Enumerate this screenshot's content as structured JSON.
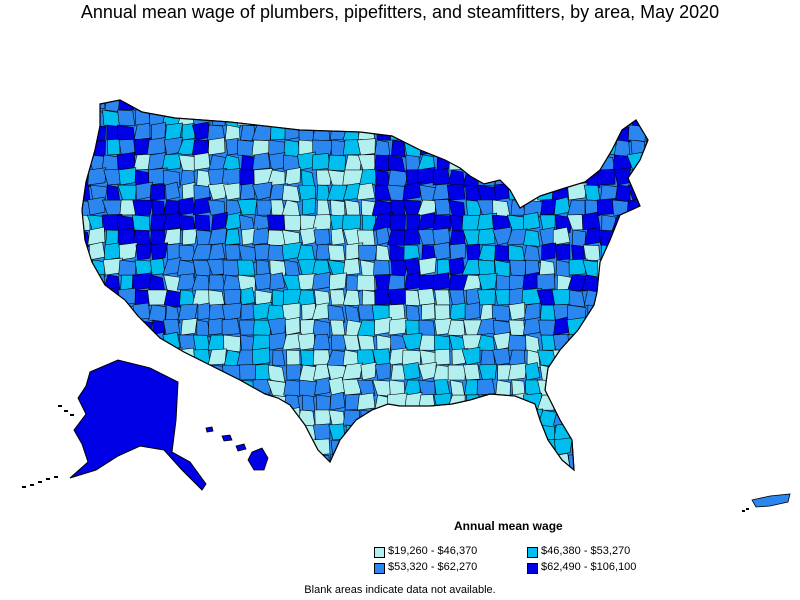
{
  "title": "Annual mean wage of plumbers, pipefitters, and steamfitters, by area, May 2020",
  "legend": {
    "title": "Annual mean wage",
    "items": [
      {
        "label": "$19,260 - $46,370",
        "color": "#b2efef"
      },
      {
        "label": "$46,380 - $53,270",
        "color": "#00bfef"
      },
      {
        "label": "$53,320 - $62,270",
        "color": "#2b86ef"
      },
      {
        "label": "$62,490 - $106,100",
        "color": "#0000e6"
      }
    ]
  },
  "note": "Blank areas indicate data not available.",
  "colors": {
    "outline": "#000000",
    "background": "#ffffff"
  }
}
